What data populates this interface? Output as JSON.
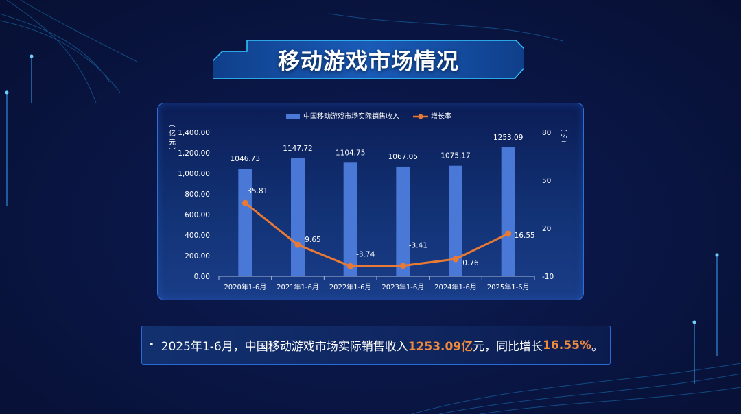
{
  "page_title": "移动游戏市场情况",
  "chart_data": {
    "type": "bar",
    "categories": [
      "2020年1-6月",
      "2021年1-6月",
      "2022年1-6月",
      "2023年1-6月",
      "2024年1-6月",
      "2025年1-6月"
    ],
    "series": [
      {
        "name": "中国移动游戏市场实际销售收入",
        "type": "bar",
        "axis": "left",
        "values": [
          1046.73,
          1147.72,
          1104.75,
          1067.05,
          1075.17,
          1253.09
        ],
        "labels": [
          "1046.73",
          "1147.72",
          "1104.75",
          "1067.05",
          "1075.17",
          "1253.09"
        ],
        "color": "#4a78d6"
      },
      {
        "name": "增长率",
        "type": "line",
        "axis": "right",
        "values": [
          35.81,
          9.65,
          -3.74,
          -3.41,
          0.76,
          16.55
        ],
        "labels": [
          "35.81",
          "9.65",
          "-3.74",
          "-3.41",
          "0.76",
          "16.55"
        ],
        "color": "#ea7a33"
      }
    ],
    "left_axis": {
      "unit_label": "（亿元）",
      "range": [
        0,
        1400
      ],
      "ticks": [
        "0.00",
        "200.00",
        "400.00",
        "600.00",
        "800.00",
        "1,000.00",
        "1,200.00",
        "1,400.00"
      ]
    },
    "right_axis": {
      "unit_label": "（%）",
      "range": [
        -10,
        80
      ],
      "ticks": [
        "-10",
        "20",
        "50",
        "80"
      ]
    },
    "legend_position": "top-center",
    "grid": false
  },
  "summary": {
    "bullet": "•",
    "part1": "2025年1-6月，中国移动游戏市场实际销售收入",
    "highlight1": "1253.09亿",
    "part2": "元，同比增长",
    "highlight2": "16.55%",
    "part3": "。"
  },
  "colors": {
    "accent_blue": "#4a78d6",
    "accent_orange": "#ea7a33",
    "highlight_orange": "#f08a3c",
    "panel_border": "#2f6fd8"
  }
}
